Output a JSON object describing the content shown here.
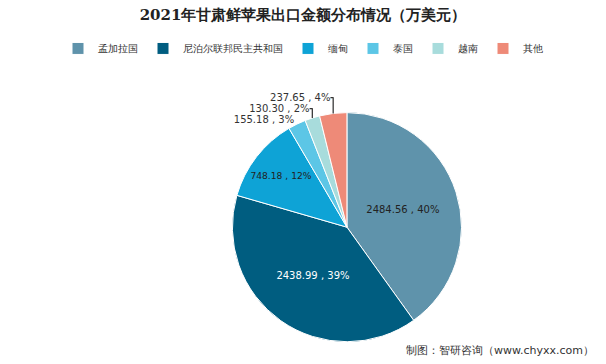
{
  "chart_data": {
    "type": "pie",
    "title": "2021年甘肃鲜苹果出口金额分布情况（万美元）",
    "categories": [
      "孟加拉国",
      "尼泊尔联邦民主共和国",
      "缅甸",
      "泰国",
      "越南",
      "其他"
    ],
    "values": [
      2484.56,
      2438.99,
      748.18,
      155.18,
      130.3,
      237.65
    ],
    "value_labels": [
      "2484.56 , 40%",
      "2438.99 , 39%",
      "748.18 , 12%",
      "155.18 , 3%",
      "130.30 , 2%",
      "237.65 , 4%"
    ],
    "colors": [
      "#5f93ab",
      "#005d80",
      "#0ea3d6",
      "#5cc6e6",
      "#a8dcdc",
      "#ee8a78"
    ],
    "data_labels": true,
    "legend": "top",
    "annotations": [
      {
        "text": "制图：智研咨询（www.chyxx.com）"
      }
    ]
  }
}
